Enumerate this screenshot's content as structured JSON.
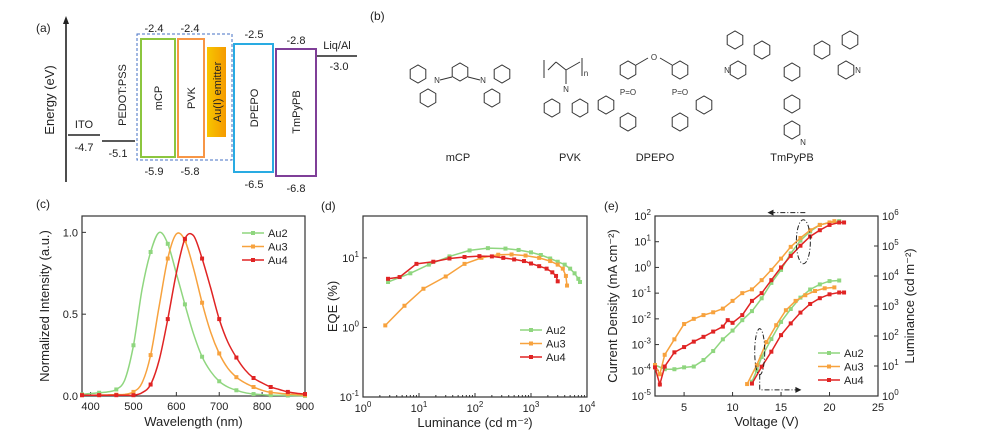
{
  "colors": {
    "Au2": "#8fd67f",
    "Au3": "#f7a23e",
    "Au4": "#e02424",
    "mCP": "#8cc63f",
    "PVK": "#f79646",
    "emitter": "#f5b800",
    "DPEPO": "#29abe2",
    "TmPyPB": "#7f3f98",
    "dashed_box": "#4472c4"
  },
  "panel_labels": [
    "(a)",
    "(b)",
    "(c)",
    "(d)",
    "(e)"
  ],
  "energy_diagram": {
    "axis_label": "Energy (eV)",
    "layers": [
      {
        "name": "ITO",
        "level": "-4.7"
      },
      {
        "name": "PEDOT:PSS",
        "level": "-5.1"
      },
      {
        "name": "mCP",
        "lumo": "-2.4",
        "homo": "-5.9"
      },
      {
        "name": "PVK",
        "lumo": "-2.4",
        "homo": "-5.8"
      },
      {
        "name": "Au(I) emitter"
      },
      {
        "name": "DPEPO",
        "lumo": "-2.5",
        "homo": "-6.5"
      },
      {
        "name": "TmPyPB",
        "lumo": "-2.8",
        "homo": "-6.8"
      },
      {
        "name": "Liq/Al",
        "level": "-3.0"
      }
    ]
  },
  "structures": {
    "labels": [
      "mCP",
      "PVK",
      "DPEPO",
      "TmPyPB"
    ],
    "atoms": {
      "N": "N",
      "O": "O",
      "P": "P",
      "PO": "P=O",
      "n": "n"
    }
  },
  "chart_data": [
    {
      "type": "line",
      "xlabel": "Wavelength (nm)",
      "ylabel": "Normalized Intensity (a.u.)",
      "xlim": [
        380,
        900
      ],
      "ylim": [
        0,
        1.1
      ],
      "xticks": [
        400,
        500,
        600,
        700,
        800,
        900
      ],
      "yticks": [
        "0.0",
        "0.5",
        "1.0"
      ],
      "legend": "top-right",
      "series": [
        {
          "name": "Au2",
          "x": [
            380,
            400,
            420,
            440,
            460,
            480,
            500,
            520,
            540,
            560,
            580,
            600,
            620,
            640,
            660,
            680,
            700,
            720,
            740,
            760,
            780,
            800,
            820,
            860,
            900
          ],
          "y": [
            0.01,
            0.015,
            0.02,
            0.025,
            0.04,
            0.1,
            0.31,
            0.65,
            0.88,
            1.0,
            0.93,
            0.75,
            0.56,
            0.38,
            0.24,
            0.15,
            0.09,
            0.055,
            0.035,
            0.02,
            0.012,
            0.008,
            0.005,
            0.003,
            0.001
          ]
        },
        {
          "name": "Au3",
          "x": [
            380,
            400,
            420,
            440,
            460,
            480,
            500,
            520,
            540,
            560,
            580,
            600,
            620,
            640,
            660,
            680,
            700,
            720,
            740,
            760,
            780,
            800,
            820,
            860,
            900
          ],
          "y": [
            0.005,
            0.005,
            0.006,
            0.007,
            0.008,
            0.01,
            0.025,
            0.08,
            0.25,
            0.55,
            0.84,
            0.99,
            0.95,
            0.78,
            0.57,
            0.39,
            0.26,
            0.17,
            0.115,
            0.08,
            0.055,
            0.035,
            0.022,
            0.012,
            0.005
          ]
        },
        {
          "name": "Au4",
          "x": [
            380,
            400,
            420,
            440,
            460,
            480,
            500,
            520,
            540,
            560,
            580,
            600,
            620,
            640,
            660,
            680,
            700,
            720,
            740,
            760,
            780,
            800,
            820,
            840,
            860,
            880,
            900
          ],
          "y": [
            0.005,
            0.005,
            0.005,
            0.005,
            0.005,
            0.005,
            0.005,
            0.02,
            0.07,
            0.22,
            0.47,
            0.75,
            0.96,
            0.98,
            0.84,
            0.66,
            0.47,
            0.33,
            0.235,
            0.16,
            0.11,
            0.08,
            0.055,
            0.04,
            0.025,
            0.017,
            0.012
          ]
        }
      ]
    },
    {
      "type": "line",
      "xlabel": "Luminance (cd m⁻²)",
      "ylabel": "EQE (%)",
      "xscale": "log",
      "yscale": "log",
      "xlim": [
        1,
        10000
      ],
      "ylim": [
        0.1,
        40
      ],
      "xticks_exp": [
        0,
        1,
        2,
        3,
        4
      ],
      "yticks_exp": [
        -1,
        0,
        1
      ],
      "legend": "lower-right",
      "series": [
        {
          "name": "Au2",
          "x": [
            2.8,
            7,
            15,
            35,
            80,
            170,
            350,
            600,
            1000,
            1500,
            2200,
            3000,
            4000,
            5000,
            6000,
            7000,
            7500
          ],
          "y": [
            4.5,
            6,
            8,
            10.5,
            12.8,
            13.8,
            13.6,
            13,
            12,
            11,
            9.8,
            8.8,
            8,
            7,
            6,
            5,
            4.5
          ]
        },
        {
          "name": "Au3",
          "x": [
            2.5,
            5.5,
            12,
            30,
            65,
            130,
            260,
            450,
            800,
            1400,
            2200,
            3000,
            3700,
            4200,
            4400
          ],
          "y": [
            1.07,
            2.05,
            3.6,
            5.4,
            8.2,
            10,
            11.1,
            11.2,
            10.8,
            10,
            9,
            8,
            7,
            5.5,
            4
          ]
        },
        {
          "name": "Au4",
          "x": [
            2.8,
            4.5,
            9,
            18,
            35,
            65,
            120,
            200,
            320,
            500,
            750,
            1000,
            1400,
            1900,
            2400,
            2800,
            3000
          ],
          "y": [
            5,
            5.3,
            8.2,
            8.8,
            9.8,
            10.3,
            10.6,
            10.5,
            10,
            9.5,
            9,
            8.3,
            7.6,
            7,
            6.2,
            5.5,
            4.6
          ]
        }
      ]
    },
    {
      "type": "line",
      "xlabel": "Voltage (V)",
      "ylabel": "Current Density (mA cm⁻²)",
      "y2label": "Luminance (cd m⁻²)",
      "xlim": [
        2,
        25
      ],
      "ylim": [
        1e-05,
        100
      ],
      "y2lim": [
        1,
        1000000
      ],
      "yscale": "log",
      "y2scale": "log",
      "xticks": [
        5,
        10,
        15,
        20,
        25
      ],
      "yticks_exp": [
        -5,
        -4,
        -3,
        -2,
        -1,
        0,
        1,
        2
      ],
      "y2ticks_exp": [
        0,
        1,
        2,
        3,
        4,
        5,
        6
      ],
      "legend": "lower-right",
      "current_density": [
        {
          "name": "Au2",
          "x": [
            2,
            3,
            4,
            5,
            6,
            7,
            8,
            9,
            10,
            11,
            12,
            13,
            14,
            15,
            16,
            17,
            18,
            19,
            20,
            21
          ],
          "y": [
            0.00016,
            0.00011,
            0.00011,
            0.00013,
            0.00014,
            0.00025,
            0.00056,
            0.0016,
            0.0035,
            0.0089,
            0.02,
            0.063,
            0.25,
            0.8,
            3.5,
            11,
            25,
            45,
            56,
            63
          ]
        },
        {
          "name": "Au3",
          "x": [
            2,
            2.5,
            3,
            4,
            5,
            6,
            7,
            8,
            9,
            10,
            11,
            12,
            13,
            14,
            15,
            16,
            17,
            18,
            19,
            20,
            20.5
          ],
          "y": [
            0.00016,
            7e-05,
            0.0004,
            0.0016,
            0.0063,
            0.01,
            0.014,
            0.018,
            0.025,
            0.05,
            0.1,
            0.14,
            0.32,
            0.8,
            2.2,
            6.3,
            14,
            28,
            45,
            56,
            63
          ]
        },
        {
          "name": "Au4",
          "x": [
            2,
            2.5,
            3,
            4,
            5,
            6,
            7,
            8,
            9,
            9.5,
            10,
            11,
            12,
            13,
            14,
            15,
            16,
            17,
            18,
            19,
            20,
            21,
            21.5
          ],
          "y": [
            0.00013,
            2.8e-05,
            0.00014,
            0.0005,
            0.0008,
            0.0013,
            0.002,
            0.0032,
            0.005,
            0.0089,
            0.007,
            0.014,
            0.05,
            0.1,
            0.32,
            1,
            2.8,
            7,
            16,
            28,
            45,
            56,
            56
          ]
        }
      ],
      "luminance": [
        {
          "name": "Au2",
          "x": [
            12,
            12.5,
            13,
            14,
            15,
            16,
            17,
            18,
            19,
            20,
            21
          ],
          "y": [
            3,
            7.2,
            20,
            79,
            295,
            794,
            1900,
            3550,
            5250,
            6760,
            7080
          ]
        },
        {
          "name": "Au3",
          "x": [
            11.5,
            12.5,
            13.5,
            14.5,
            15.5,
            16.5,
            17.5,
            18.5,
            19.5,
            20.5
          ],
          "y": [
            2.5,
            10.7,
            63,
            229,
            724,
            1480,
            2290,
            3160,
            3890,
            4170
          ]
        },
        {
          "name": "Au4",
          "x": [
            12,
            13,
            14,
            15,
            16,
            17,
            18,
            19,
            20,
            21,
            21.5
          ],
          "y": [
            2.6,
            9.5,
            30,
            107,
            263,
            603,
            1170,
            1820,
            2450,
            2820,
            2820
          ]
        }
      ]
    }
  ]
}
